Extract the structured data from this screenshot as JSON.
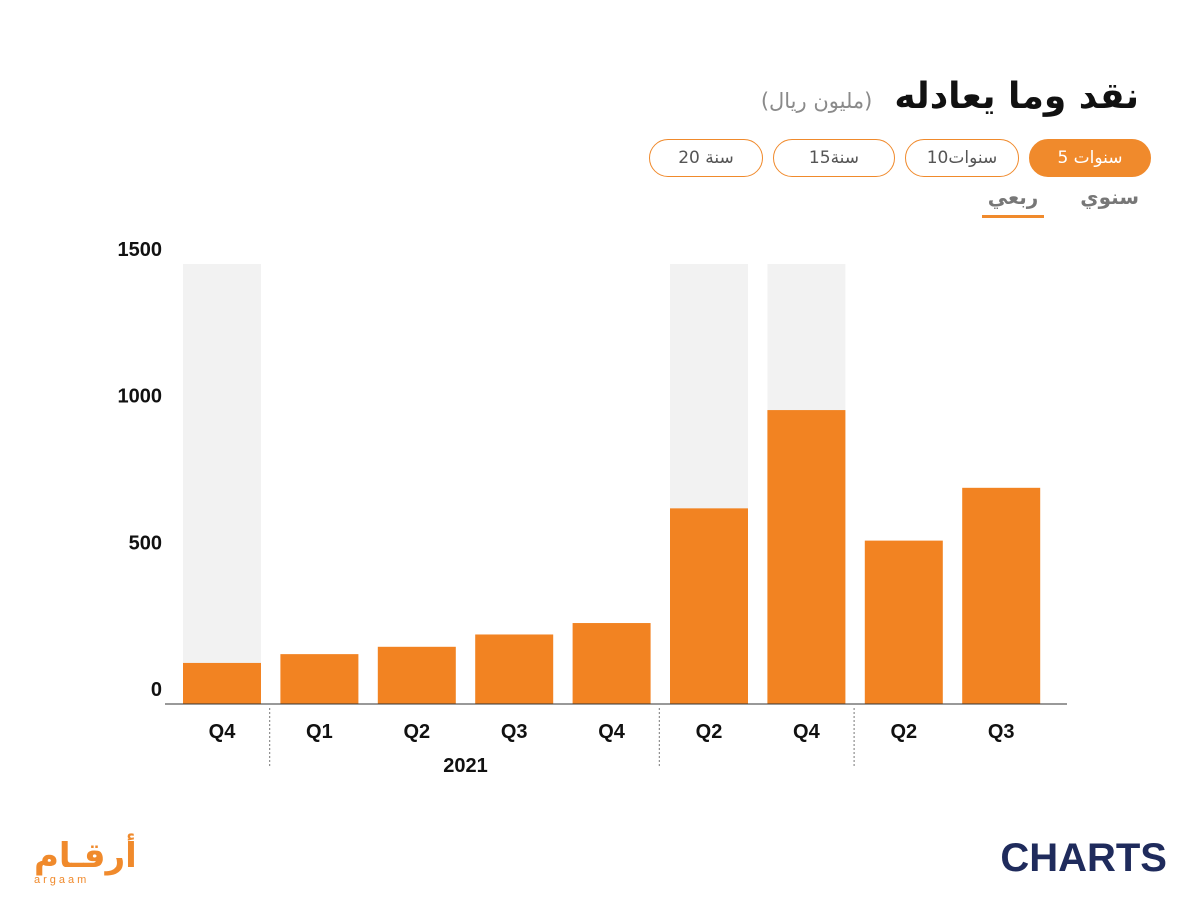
{
  "title": "نقد وما يعادله",
  "unit": "(مليون ريال)",
  "range_buttons": [
    {
      "label": "5 سنوات",
      "active": true
    },
    {
      "label": "10سنوات",
      "active": false
    },
    {
      "label": "15سنة",
      "active": false
    },
    {
      "label": "20 سنة",
      "active": false
    }
  ],
  "freq_tabs": [
    {
      "label": "سنوي",
      "active": false
    },
    {
      "label": "ربعي",
      "active": true
    }
  ],
  "logos": {
    "argaam_ar": "أرقـام",
    "argaam_en": "argaam",
    "charts": "CHARTS"
  },
  "colors": {
    "bar": "#f28322",
    "shade": "#f2f2f2",
    "accent": "#f08a2c"
  },
  "chart_data": {
    "type": "bar",
    "categories": [
      "Q4",
      "Q1",
      "Q2",
      "Q3",
      "Q4",
      "Q2",
      "Q4",
      "Q2",
      "Q3"
    ],
    "values": [
      140,
      170,
      195,
      237,
      276,
      667,
      1002,
      557,
      737
    ],
    "year_groups": [
      {
        "label": "",
        "start": 0,
        "end": 0
      },
      {
        "label": "2021",
        "start": 1,
        "end": 4
      },
      {
        "label": "",
        "start": 5,
        "end": 6
      },
      {
        "label": "",
        "start": 7,
        "end": 8
      }
    ],
    "shaded_columns": [
      0,
      5,
      6
    ],
    "yticks": [
      0,
      500,
      1000,
      1500
    ],
    "ylim": [
      0,
      1500
    ],
    "grid": false
  }
}
